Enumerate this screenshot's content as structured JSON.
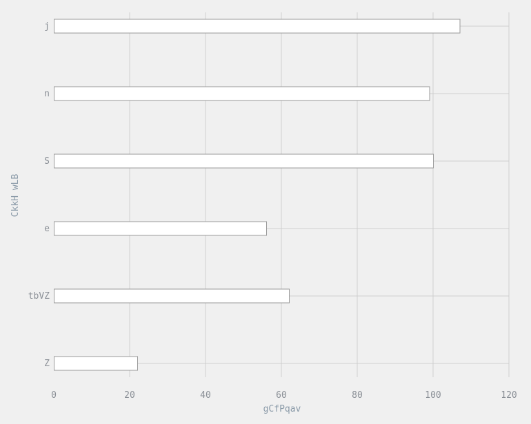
{
  "chart_data": {
    "type": "bar",
    "orientation": "horizontal",
    "categories": [
      "j",
      "n",
      "S",
      "e",
      "tbVZ",
      "Z"
    ],
    "values": [
      107,
      99,
      100,
      56,
      62,
      22
    ],
    "xlabel": "gCfPqav",
    "ylabel": "CkkH  wLB",
    "xlim": [
      0,
      120
    ],
    "xticks": [
      0,
      20,
      40,
      60,
      80,
      100,
      120
    ],
    "grid": true,
    "colors": {
      "bar_fill": "#ffffff",
      "bar_stroke": "#9a9a9a",
      "grid": "#cfcfcf",
      "background": "#f0f0f0"
    }
  }
}
